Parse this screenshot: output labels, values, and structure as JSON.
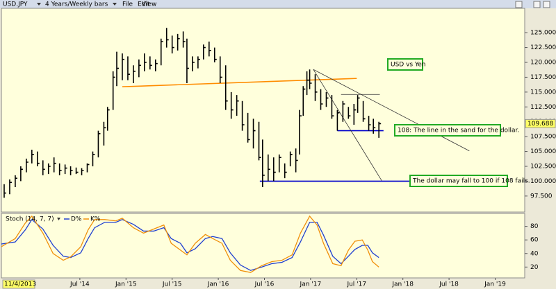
{
  "toolbar": {
    "symbol": "USD.JPY",
    "period": "4 Years/Weekly bars",
    "menu": [
      "File",
      "Edit",
      "View"
    ]
  },
  "chart_data": [
    {
      "type": "ohlc",
      "xlim": [
        2013.65,
        2019.32
      ],
      "ylim": [
        94.8,
        129.1
      ],
      "color": "#000000",
      "x": [
        2013.68,
        2013.74,
        2013.8,
        2013.86,
        2013.92,
        2013.98,
        2014.04,
        2014.1,
        2014.16,
        2014.22,
        2014.28,
        2014.34,
        2014.4,
        2014.46,
        2014.52,
        2014.58,
        2014.64,
        2014.7,
        2014.76,
        2014.8,
        2014.86,
        2014.9,
        2014.96,
        2015.02,
        2015.08,
        2015.14,
        2015.2,
        2015.26,
        2015.32,
        2015.38,
        2015.44,
        2015.5,
        2015.56,
        2015.62,
        2015.66,
        2015.72,
        2015.78,
        2015.84,
        2015.9,
        2015.96,
        2016.02,
        2016.08,
        2016.14,
        2016.2,
        2016.26,
        2016.32,
        2016.38,
        2016.44,
        2016.48,
        2016.54,
        2016.6,
        2016.66,
        2016.72,
        2016.78,
        2016.84,
        2016.88,
        2016.92,
        2016.96,
        2016.99,
        2017.05,
        2017.11,
        2017.17,
        2017.23,
        2017.29,
        2017.35,
        2017.41,
        2017.47,
        2017.51,
        2017.57,
        2017.63,
        2017.68,
        2017.74
      ],
      "high": [
        99.5,
        100.3,
        101.0,
        102.5,
        103.8,
        105.3,
        105.0,
        103.5,
        103.0,
        104.0,
        103.0,
        102.8,
        102.5,
        102.3,
        102.2,
        103.0,
        105.0,
        108.5,
        110.0,
        112.5,
        118.5,
        121.8,
        121.5,
        121.0,
        119.5,
        120.5,
        121.5,
        121.0,
        120.5,
        124.0,
        125.8,
        124.5,
        124.8,
        125.2,
        124.0,
        121.0,
        121.0,
        123.0,
        123.5,
        122.5,
        121.0,
        119.5,
        115.0,
        114.5,
        113.5,
        111.5,
        110.5,
        110.0,
        107.0,
        104.5,
        104.0,
        104.5,
        103.0,
        105.0,
        105.5,
        112.0,
        116.0,
        118.5,
        118.8,
        118.0,
        115.5,
        115.0,
        114.5,
        112.0,
        113.5,
        112.5,
        113.0,
        114.5,
        113.5,
        111.0,
        110.5,
        110.0
      ],
      "low": [
        97.2,
        97.8,
        99.0,
        100.0,
        101.5,
        103.0,
        102.5,
        101.0,
        101.2,
        101.5,
        101.0,
        101.2,
        101.0,
        101.2,
        101.0,
        101.5,
        102.5,
        104.0,
        106.0,
        108.5,
        112.0,
        116.0,
        117.0,
        117.0,
        116.5,
        117.5,
        118.5,
        118.8,
        118.5,
        119.5,
        122.5,
        121.5,
        122.0,
        122.5,
        116.5,
        118.5,
        119.0,
        120.5,
        121.0,
        120.0,
        116.5,
        112.0,
        110.5,
        111.0,
        108.5,
        106.5,
        105.5,
        103.5,
        99.0,
        100.0,
        100.0,
        101.5,
        100.5,
        102.5,
        101.5,
        104.5,
        111.0,
        114.5,
        115.5,
        113.5,
        112.0,
        112.5,
        110.5,
        108.5,
        110.0,
        110.5,
        109.5,
        111.5,
        110.0,
        108.5,
        108.0,
        107.3
      ],
      "close": [
        98.0,
        99.8,
        100.5,
        102.0,
        103.2,
        104.5,
        103.0,
        102.0,
        102.5,
        103.0,
        101.8,
        102.2,
        101.8,
        101.5,
        101.8,
        102.8,
        104.5,
        108.0,
        109.0,
        112.0,
        117.5,
        119.0,
        120.5,
        118.0,
        118.5,
        119.5,
        120.0,
        119.5,
        119.8,
        123.5,
        123.8,
        122.5,
        124.0,
        123.5,
        119.0,
        120.0,
        120.5,
        122.5,
        122.0,
        120.5,
        117.5,
        113.5,
        112.0,
        113.5,
        109.5,
        107.0,
        108.5,
        104.0,
        101.0,
        102.0,
        101.5,
        104.0,
        101.5,
        104.5,
        103.5,
        111.0,
        115.5,
        117.0,
        116.5,
        115.0,
        113.0,
        114.0,
        111.0,
        111.5,
        113.0,
        111.0,
        112.0,
        114.0,
        110.5,
        109.5,
        109.0,
        109.688
      ],
      "last_price": 109.688,
      "yticks": [
        {
          "value": 97.5,
          "label": "97.500"
        },
        {
          "value": 100,
          "label": "100.000"
        },
        {
          "value": 102.5,
          "label": "102.500"
        },
        {
          "value": 105,
          "label": "105.000"
        },
        {
          "value": 107.5,
          "label": "107.500"
        },
        {
          "value": 110,
          "label": "110.000"
        },
        {
          "value": 112.5,
          "label": "112.500"
        },
        {
          "value": 115,
          "label": "115.000"
        },
        {
          "value": 117.5,
          "label": "117.500"
        },
        {
          "value": 120,
          "label": "120.000"
        },
        {
          "value": 122.5,
          "label": "122.500"
        },
        {
          "value": 125,
          "label": "125.000"
        }
      ],
      "lines": [
        {
          "color": "#ff8c00",
          "x": [
            2014.96,
            2017.5
          ],
          "y": [
            115.9,
            117.3
          ]
        },
        {
          "color": "#0000cc",
          "x": [
            2017.29,
            2017.79
          ],
          "y": [
            108.5,
            108.5
          ]
        },
        {
          "color": "#0000cc",
          "x": [
            2016.45,
            2018.07
          ],
          "y": [
            100,
            100
          ]
        },
        {
          "color": "#333333",
          "x": [
            2017.03,
            2018.72
          ],
          "y": [
            118.8,
            105.1
          ]
        },
        {
          "color": "#333333",
          "x": [
            2017.03,
            2017.77
          ],
          "y": [
            118.8,
            100.1
          ]
        },
        {
          "color": "#333333",
          "x": [
            2017.33,
            2017.75
          ],
          "y": [
            114.6,
            114.6
          ]
        }
      ],
      "annotations": [
        "USD vs Yen",
        "108:  The line in the sand for the dollar.",
        "The dollar may fall to 100 if 108 fails."
      ]
    },
    {
      "type": "line",
      "title": "Stoch (14, 7, 7)",
      "xlim": [
        2013.65,
        2019.32
      ],
      "ylim": [
        4,
        99
      ],
      "yticks": [
        20,
        40,
        60,
        80
      ],
      "cursor_label": "11/4/2013",
      "xticks": [
        {
          "value": 2014.5,
          "label": "Jul '14"
        },
        {
          "value": 2015,
          "label": "Jan '15"
        },
        {
          "value": 2015.5,
          "label": "Jul '15"
        },
        {
          "value": 2016,
          "label": "Jan '16"
        },
        {
          "value": 2016.5,
          "label": "Jul '16"
        },
        {
          "value": 2017,
          "label": "Jan '17"
        },
        {
          "value": 2017.5,
          "label": "Jul '17"
        },
        {
          "value": 2018,
          "label": "Jan '18"
        },
        {
          "value": 2018.5,
          "label": "Jul '18"
        },
        {
          "value": 2019,
          "label": "Jan '19"
        }
      ],
      "x": [
        2013.65,
        2013.8,
        2013.91,
        2013.98,
        2014.1,
        2014.21,
        2014.32,
        2014.4,
        2014.51,
        2014.59,
        2014.66,
        2014.77,
        2014.89,
        2014.96,
        2015.08,
        2015.19,
        2015.3,
        2015.41,
        2015.49,
        2015.59,
        2015.66,
        2015.75,
        2015.86,
        2015.94,
        2016.04,
        2016.13,
        2016.24,
        2016.35,
        2016.47,
        2016.58,
        2016.69,
        2016.8,
        2016.89,
        2016.99,
        2017.07,
        2017.14,
        2017.24,
        2017.33,
        2017.41,
        2017.48,
        2017.56,
        2017.62,
        2017.67,
        2017.74
      ],
      "series": [
        {
          "name": "D%",
          "color": "#1f3fd0",
          "values": [
            54,
            57,
            75,
            90,
            76,
            52,
            36,
            34,
            41,
            62,
            78,
            86,
            86,
            90,
            83,
            73,
            73,
            78,
            62,
            55,
            41,
            47,
            62,
            65,
            62,
            41,
            23,
            15,
            20,
            25,
            27,
            34,
            57,
            86,
            86,
            67,
            36,
            25,
            36,
            46,
            52,
            52,
            41,
            34
          ]
        },
        {
          "name": "K%",
          "color": "#f0900a",
          "values": [
            50,
            62,
            85,
            95,
            70,
            40,
            30,
            35,
            50,
            75,
            90,
            90,
            88,
            92,
            78,
            70,
            76,
            82,
            55,
            45,
            38,
            55,
            68,
            62,
            55,
            30,
            15,
            12,
            22,
            28,
            30,
            38,
            70,
            95,
            82,
            55,
            25,
            22,
            45,
            58,
            60,
            45,
            28,
            20
          ]
        }
      ]
    }
  ]
}
